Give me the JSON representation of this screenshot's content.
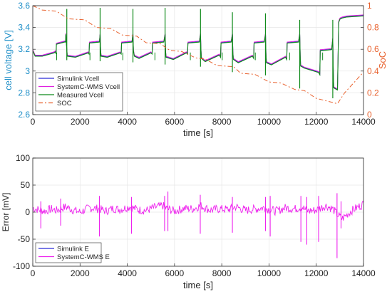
{
  "chart_data": [
    {
      "type": "line",
      "xlabel": "time [s]",
      "ylabel": "cell voltage [V]",
      "y2label": "SoC",
      "xlim": [
        0,
        14000
      ],
      "ylim": [
        2.6,
        3.6
      ],
      "y2lim": [
        0,
        1
      ],
      "xticks": [
        0,
        2000,
        4000,
        6000,
        8000,
        10000,
        12000,
        14000
      ],
      "yticks": [
        2.6,
        2.8,
        3,
        3.2,
        3.4,
        3.6
      ],
      "y2ticks": [
        0,
        0.2,
        0.4,
        0.6,
        0.8,
        1
      ],
      "xtick_labels": [
        "0",
        "2000",
        "4000",
        "6000",
        "8000",
        "10000",
        "12000",
        "14000"
      ],
      "ytick_labels": [
        "2.6",
        "2.8",
        "3",
        "3.2",
        "3.4",
        "3.6"
      ],
      "y2tick_labels": [
        "0",
        "0.2",
        "0.4",
        "0.6",
        "0.8",
        "1"
      ],
      "grid": true,
      "legend_position": "lower-left",
      "ylabel_color": "#1f8fc8",
      "y2label_color": "#e8602c",
      "series": [
        {
          "name": "Simulink Vcell",
          "color": "#2b2bd6",
          "axis": "left",
          "x": [
            0,
            80,
            100,
            400,
            900,
            960,
            990,
            1000,
            1350,
            1390,
            1400,
            1440,
            1460,
            1800,
            2350,
            2380,
            2400,
            2820,
            2850,
            2870,
            2890,
            3150,
            3700,
            3740,
            3760,
            4200,
            4240,
            4260,
            4300,
            4500,
            5000,
            5050,
            5070,
            5550,
            5600,
            5620,
            5640,
            5950,
            6500,
            6550,
            6570,
            7050,
            7100,
            7120,
            7140,
            7300,
            7900,
            7950,
            7970,
            8400,
            8450,
            8470,
            8490,
            8700,
            9300,
            9350,
            9370,
            9800,
            9850,
            9870,
            9890,
            10100,
            10700,
            10750,
            10770,
            11250,
            11300,
            11320,
            11340,
            11500,
            12100,
            12150,
            12170,
            12650,
            12700,
            12720,
            12740,
            12900,
            12950,
            13000,
            13100,
            13300,
            14000
          ],
          "values": [
            3.19,
            3.15,
            3.14,
            3.14,
            3.17,
            3.18,
            3.16,
            3.25,
            3.27,
            3.27,
            3.34,
            3.2,
            3.14,
            3.13,
            3.17,
            3.16,
            3.26,
            3.27,
            3.34,
            3.2,
            3.14,
            3.13,
            3.17,
            3.16,
            3.26,
            3.27,
            3.34,
            3.19,
            3.14,
            3.12,
            3.17,
            3.16,
            3.26,
            3.27,
            3.34,
            3.19,
            3.13,
            3.11,
            3.17,
            3.16,
            3.26,
            3.27,
            3.34,
            3.19,
            3.12,
            3.09,
            3.15,
            3.13,
            3.26,
            3.27,
            3.34,
            3.18,
            3.11,
            3.08,
            3.14,
            3.12,
            3.26,
            3.27,
            3.34,
            3.17,
            3.08,
            3.06,
            3.13,
            3.11,
            3.26,
            3.27,
            3.34,
            3.15,
            3.05,
            3.03,
            2.99,
            2.97,
            3.19,
            3.2,
            3.3,
            3.0,
            2.85,
            2.83,
            3.45,
            3.48,
            3.49,
            3.5,
            3.51
          ],
          "spikes": [
            [
              1440,
              3.57,
              3.1
            ],
            [
              2850,
              3.58,
              3.09
            ],
            [
              4240,
              3.57,
              3.08
            ],
            [
              5600,
              3.58,
              3.06
            ],
            [
              7100,
              3.57,
              3.04
            ],
            [
              8450,
              3.54,
              2.99
            ],
            [
              9850,
              3.53,
              2.96
            ],
            [
              11300,
              3.47,
              2.84
            ],
            [
              12700,
              3.47,
              2.75
            ]
          ]
        },
        {
          "name": "SystemC-WMS Vcell",
          "color": "#e020e0",
          "axis": "left"
        },
        {
          "name": "Measured Vcell",
          "color": "#0f8a1a",
          "axis": "left"
        },
        {
          "name": "SOC",
          "color": "#e8602c",
          "dash": "6,3,2,3",
          "axis": "right",
          "x": [
            0,
            400,
            1000,
            1500,
            2200,
            2700,
            3300,
            3800,
            4400,
            4800,
            5400,
            5800,
            6300,
            6900,
            7300,
            7800,
            8500,
            8800,
            9400,
            10000,
            10500,
            11100,
            11500,
            12000,
            12900,
            13200,
            14000
          ],
          "values": [
            1.0,
            0.96,
            0.95,
            0.88,
            0.87,
            0.8,
            0.79,
            0.73,
            0.72,
            0.66,
            0.65,
            0.59,
            0.58,
            0.52,
            0.51,
            0.45,
            0.44,
            0.38,
            0.37,
            0.3,
            0.29,
            0.23,
            0.22,
            0.15,
            0.1,
            0.2,
            0.39
          ]
        }
      ]
    },
    {
      "type": "line",
      "xlabel": "time [s]",
      "ylabel": "Error [mV]",
      "xlim": [
        0,
        14000
      ],
      "ylim": [
        -100,
        100
      ],
      "xticks": [
        0,
        2000,
        4000,
        6000,
        8000,
        10000,
        12000,
        14000
      ],
      "yticks": [
        -100,
        -50,
        0,
        50,
        100
      ],
      "xtick_labels": [
        "0",
        "2000",
        "4000",
        "6000",
        "8000",
        "10000",
        "12000",
        "14000"
      ],
      "ytick_labels": [
        "-100",
        "-50",
        "0",
        "50",
        "100"
      ],
      "grid": true,
      "legend_position": "lower-left",
      "series": [
        {
          "name": "Simulink E",
          "color": "#2b2bd6",
          "values": []
        },
        {
          "name": "SystemC-WMS E",
          "color": "#ee22ee",
          "x": [
            0,
            200,
            500,
            800,
            1000,
            1400,
            1700,
            2000,
            2400,
            2800,
            3100,
            3400,
            3700,
            4100,
            4500,
            4800,
            5100,
            5500,
            5700,
            6000,
            6400,
            6800,
            7100,
            7500,
            7900,
            8300,
            8600,
            9000,
            9400,
            9800,
            10000,
            10300,
            10700,
            11100,
            11400,
            11600,
            12000,
            12400,
            12700,
            12900,
            13100,
            13500,
            14000
          ],
          "values": [
            8,
            5,
            2,
            6,
            3,
            10,
            4,
            0,
            8,
            6,
            2,
            7,
            5,
            10,
            4,
            3,
            8,
            12,
            6,
            2,
            7,
            6,
            12,
            4,
            6,
            5,
            10,
            3,
            6,
            8,
            5,
            2,
            8,
            6,
            10,
            2,
            4,
            12,
            6,
            -5,
            -12,
            3,
            15
          ],
          "noise_amplitude": 8,
          "spikes": [
            [
              340,
              20,
              -30
            ],
            [
              1180,
              25,
              -25
            ],
            [
              2820,
              30,
              -45
            ],
            [
              4180,
              28,
              -40
            ],
            [
              5580,
              30,
              -35
            ],
            [
              5720,
              38,
              -35
            ],
            [
              7090,
              32,
              -40
            ],
            [
              8450,
              28,
              -38
            ],
            [
              9850,
              28,
              -35
            ],
            [
              10050,
              30,
              -45
            ],
            [
              11350,
              30,
              -55
            ],
            [
              11600,
              28,
              -60
            ],
            [
              12100,
              30,
              -55
            ],
            [
              12880,
              35,
              -85
            ],
            [
              13050,
              20,
              -30
            ]
          ]
        }
      ]
    }
  ]
}
